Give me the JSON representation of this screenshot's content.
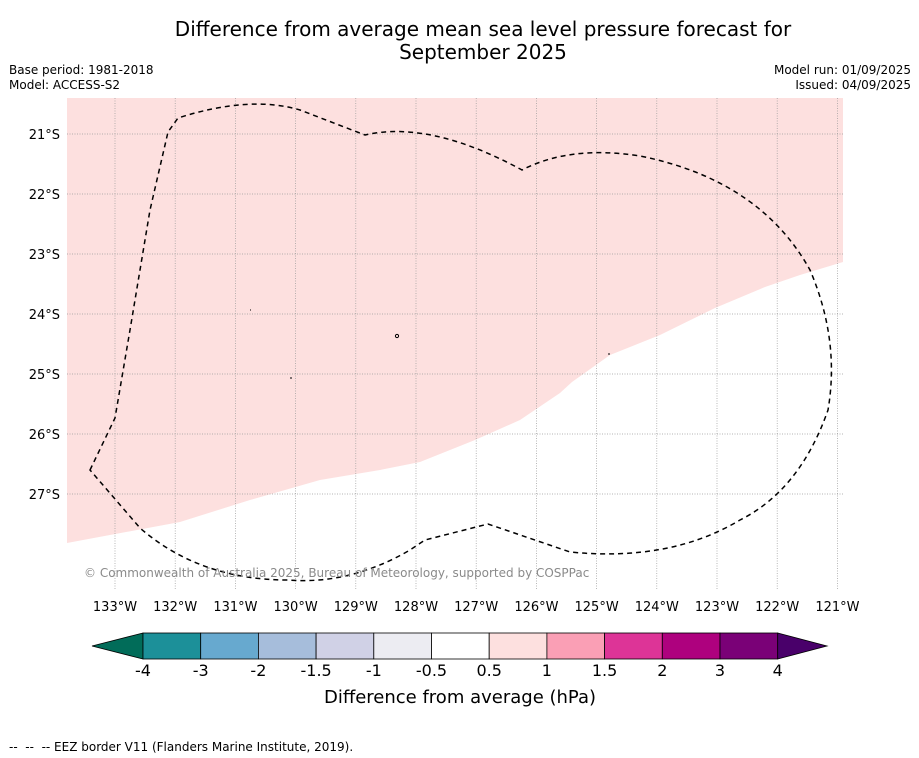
{
  "title_line1": "Difference from average mean sea level pressure forecast for",
  "title_line2": "September 2025",
  "base_period": "Base period: 1981-2018",
  "model": "Model: ACCESS-S2",
  "model_run": "Model run: 01/09/2025",
  "issued": "Issued: 04/09/2025",
  "map": {
    "lat_labels": [
      "21°S",
      "22°S",
      "23°S",
      "24°S",
      "25°S",
      "26°S",
      "27°S"
    ],
    "lon_labels": [
      "133°W",
      "132°W",
      "131°W",
      "130°W",
      "129°W",
      "128°W",
      "127°W",
      "126°W",
      "125°W",
      "124°W",
      "123°W",
      "122°W",
      "121°W"
    ],
    "fill_color": "#fde0df",
    "copyright": "© Commonwealth of Australia 2025, Bureau of Meteorology, supported by COSPPac"
  },
  "colorbar": {
    "label": "Difference from average (hPa)",
    "ticks": [
      "-4",
      "-3",
      "-2",
      "-1.5",
      "-1",
      "-0.5",
      "0.5",
      "1",
      "1.5",
      "2",
      "3",
      "4"
    ],
    "colors": [
      "#016c59",
      "#1c9099",
      "#67a9cf",
      "#a6bddb",
      "#d0d1e6",
      "#ececf2",
      "#ffffff",
      "#fde0df",
      "#fa9fb5",
      "#dd3497",
      "#ae017e",
      "#7a0177",
      "#49006a"
    ]
  },
  "footer": "--  --  -- EEZ border V11 (Flanders Marine Institute, 2019)."
}
